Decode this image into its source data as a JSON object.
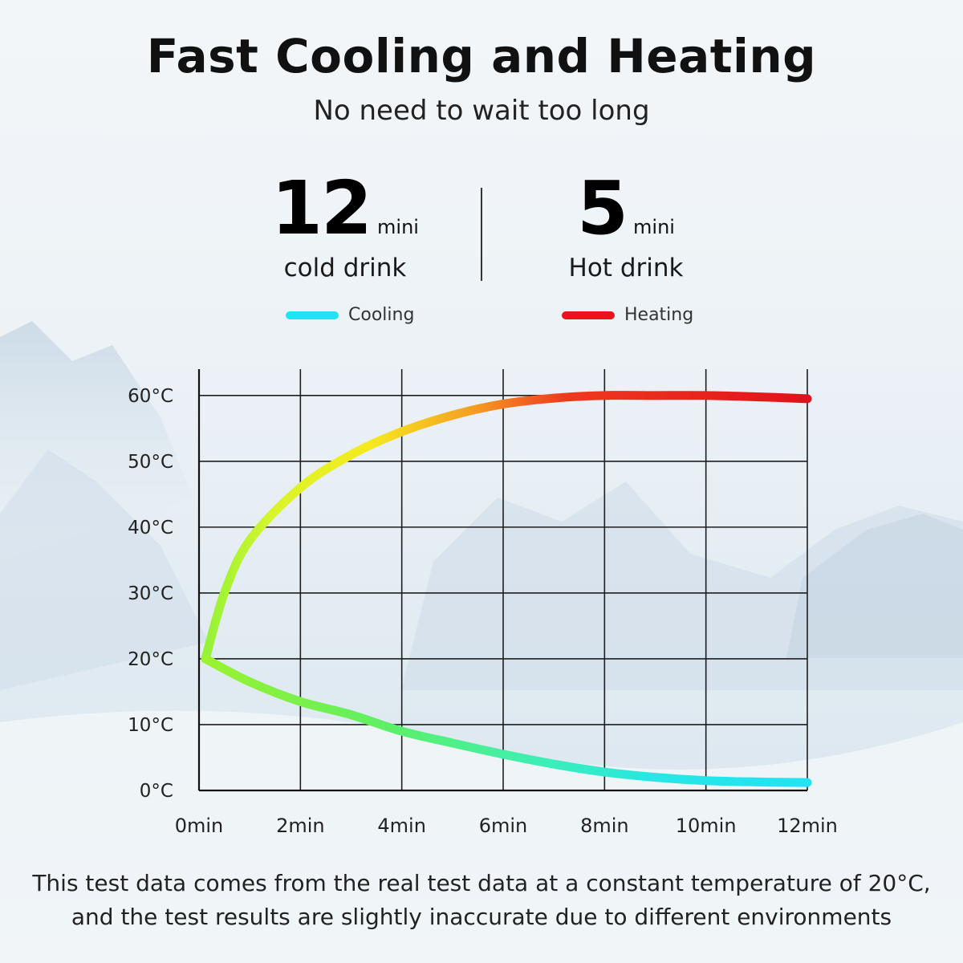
{
  "header": {
    "title": "Fast Cooling and Heating",
    "subtitle": "No need to wait too long"
  },
  "stats": [
    {
      "value": "12",
      "unit": "mini",
      "label": "cold drink"
    },
    {
      "value": "5",
      "unit": "mini",
      "label": "Hot drink"
    }
  ],
  "legend": [
    {
      "label": "Cooling",
      "color": "#21e3f2"
    },
    {
      "label": "Heating",
      "color": "#e8141e"
    }
  ],
  "chart_data": {
    "type": "line",
    "xlabel": "",
    "ylabel": "",
    "x_ticks": [
      "0min",
      "2min",
      "4min",
      "6min",
      "8min",
      "10min",
      "12min"
    ],
    "y_ticks": [
      "0°C",
      "10°C",
      "20°C",
      "30°C",
      "40°C",
      "50°C",
      "60°C"
    ],
    "xlim": [
      0,
      12
    ],
    "ylim": [
      0,
      64
    ],
    "grid": true,
    "series": [
      {
        "name": "Heating",
        "color": "#e8141e",
        "x": [
          0,
          0.5,
          1,
          2,
          3,
          4,
          5,
          6,
          7,
          8,
          9,
          10,
          11,
          12
        ],
        "y": [
          20,
          30,
          38,
          46,
          51,
          54.5,
          57,
          58.7,
          59.6,
          60,
          60,
          60,
          59.8,
          59.5
        ]
      },
      {
        "name": "Cooling",
        "color": "#21e3f2",
        "x": [
          0,
          1,
          2,
          3,
          4,
          5,
          6,
          7,
          8,
          9,
          10,
          11,
          12
        ],
        "y": [
          20,
          16.5,
          13.5,
          11.5,
          9,
          7.2,
          5.5,
          4,
          2.8,
          2,
          1.5,
          1.3,
          1.2
        ]
      }
    ]
  },
  "footnote": {
    "line1": "This test data comes from the real test data at a constant temperature of 20°C,",
    "line2": "and the test results are slightly inaccurate due to different environments"
  }
}
